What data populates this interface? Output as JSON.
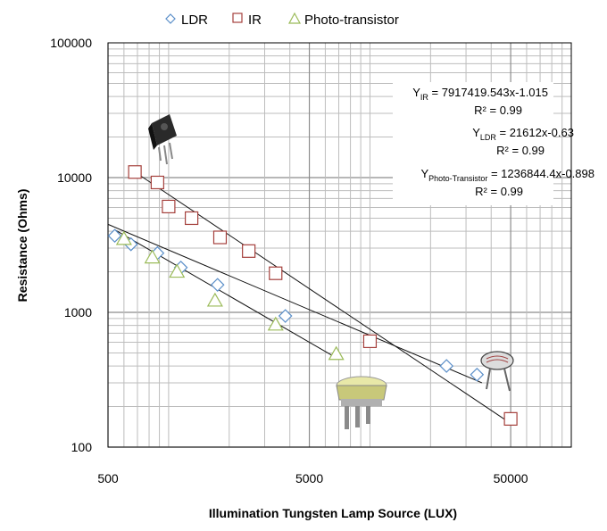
{
  "chart_data": {
    "type": "scatter",
    "x_scale": "log",
    "y_scale": "log",
    "xlabel": "Illumination Tungsten Lamp Source  (LUX)",
    "ylabel": "Resistance (Ohms)",
    "xlim": [
      500,
      100000
    ],
    "ylim": [
      100,
      100000
    ],
    "x_tick_labels": [
      "500",
      "5000",
      "50000"
    ],
    "y_tick_labels": [
      "100",
      "1000",
      "10000",
      "100000"
    ],
    "grid": true,
    "legend_position": "top",
    "series": [
      {
        "name": "LDR",
        "marker": "diamond",
        "color": "#5B8FC9",
        "points": [
          [
            540,
            3700
          ],
          [
            650,
            3200
          ],
          [
            880,
            2750
          ],
          [
            1150,
            2150
          ],
          [
            1750,
            1600
          ],
          [
            3800,
            940
          ],
          [
            24000,
            400
          ],
          [
            34000,
            345
          ]
        ]
      },
      {
        "name": "IR",
        "marker": "square",
        "color": "#A5403C",
        "points": [
          [
            680,
            11000
          ],
          [
            880,
            9200
          ],
          [
            1000,
            6100
          ],
          [
            1300,
            5000
          ],
          [
            1800,
            3600
          ],
          [
            2500,
            2850
          ],
          [
            3400,
            1950
          ],
          [
            10000,
            610
          ],
          [
            50000,
            162
          ]
        ]
      },
      {
        "name": "Photo-transistor",
        "marker": "triangle",
        "color": "#9BBB59",
        "points": [
          [
            600,
            3500
          ],
          [
            830,
            2550
          ],
          [
            1100,
            2000
          ],
          [
            1700,
            1220
          ],
          [
            3400,
            810
          ],
          [
            6800,
            490
          ]
        ]
      }
    ],
    "trendlines": [
      {
        "series": "IR",
        "x": [
          680,
          50000
        ],
        "y": [
          11000,
          150
        ]
      },
      {
        "series": "LDR",
        "x": [
          500,
          36000
        ],
        "y": [
          4500,
          300
        ]
      },
      {
        "series": "Photo-transistor",
        "x": [
          540,
          6800
        ],
        "y": [
          4100,
          460
        ]
      }
    ]
  },
  "equations": [
    {
      "base": "Y",
      "sub": "IR",
      "expr": " = 7917419.543x-1.015",
      "r2": "R² = 0.99"
    },
    {
      "base": "Y",
      "sub": "LDR",
      "expr": " = 21612x-0.63",
      "r2": "R² = 0.99"
    },
    {
      "base": "Y",
      "sub": "Photo-Transistor",
      "expr": " = 1236844.4x-0.898",
      "r2": "R² = 0.99"
    }
  ]
}
